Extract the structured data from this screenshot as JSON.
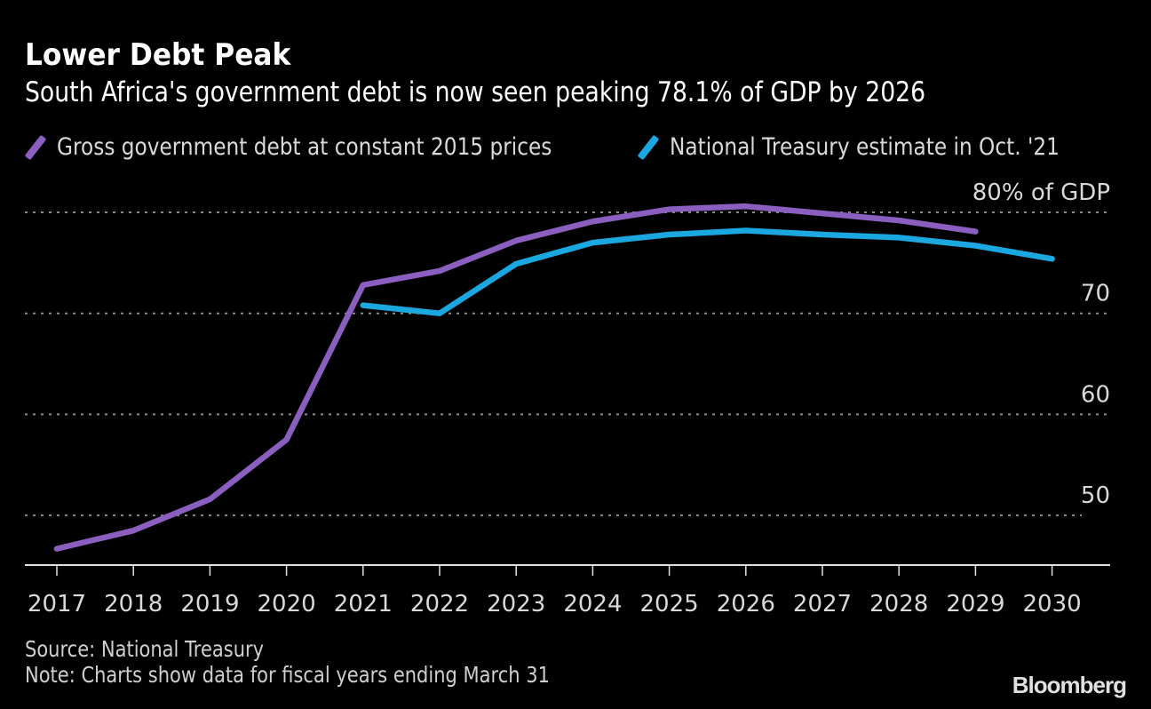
{
  "header": {
    "title": "Lower Debt Peak",
    "subtitle": "South Africa's government debt is now seen peaking 78.1% of GDP by 2026"
  },
  "legend": [
    {
      "label": "Gross government debt at constant 2015 prices",
      "color": "#8b5fbf",
      "icon": "diagonal-line-swatch"
    },
    {
      "label": "National Treasury estimate in Oct. '21",
      "color": "#1ba7e0",
      "icon": "diagonal-line-swatch"
    }
  ],
  "footer": {
    "source": "Source: National Treasury",
    "note": "Note: Charts show data for fiscal years ending March 31",
    "brand": "Bloomberg"
  },
  "chart_data": {
    "type": "line",
    "title": "Lower Debt Peak",
    "subtitle": "South Africa's government debt is now seen peaking 78.1% of GDP by 2026",
    "xlabel": "",
    "ylabel": "% of GDP",
    "x": [
      "2017",
      "2018",
      "2019",
      "2020",
      "2021",
      "2022",
      "2023",
      "2024",
      "2025",
      "2026",
      "2027",
      "2028",
      "2029",
      "2030"
    ],
    "ylim": [
      45,
      82
    ],
    "yticks": [
      50,
      60,
      70,
      80
    ],
    "ytick_labels": [
      "50",
      "60",
      "70",
      "80% of GDP"
    ],
    "grid": true,
    "legend_position": "top-left",
    "series": [
      {
        "name": "Gross government debt at constant 2015 prices",
        "color": "#8b5fbf",
        "values": [
          46.7,
          48.5,
          51.6,
          57.5,
          72.8,
          74.2,
          77.2,
          79.1,
          80.3,
          80.6,
          79.9,
          79.2,
          78.1,
          null
        ]
      },
      {
        "name": "National Treasury estimate in Oct. '21",
        "color": "#1ba7e0",
        "values": [
          null,
          null,
          null,
          null,
          70.8,
          70.0,
          74.9,
          77.0,
          77.8,
          78.2,
          77.8,
          77.5,
          76.7,
          75.4
        ]
      }
    ]
  }
}
